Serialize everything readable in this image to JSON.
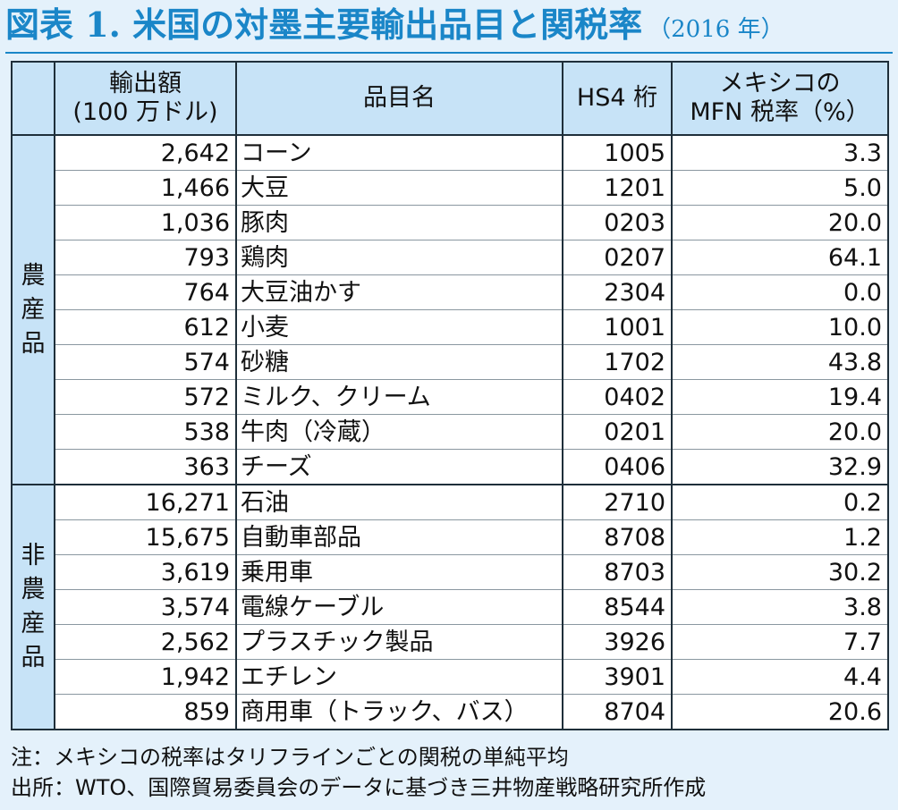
{
  "title": "図表 1. 米国の対墨主要輸出品目と関税率",
  "title_year": "（2016 年）",
  "headers": {
    "export_line1": "輸出額",
    "export_line2": "(100 万ドル)",
    "item": "品目名",
    "hs4": "HS4 桁",
    "mfn_line1": "メキシコの",
    "mfn_line2": "MFN 税率（%）"
  },
  "groups": {
    "agri": "農産品",
    "nonagri": "非農産品"
  },
  "chart_data": {
    "type": "table",
    "columns": [
      "輸出額(100 万ドル)",
      "品目名",
      "HS4 桁",
      "メキシコのMFN 税率（%）"
    ],
    "agri_rows": [
      {
        "export": "2,642",
        "item": "コーン",
        "hs4": "1005",
        "mfn": "3.3"
      },
      {
        "export": "1,466",
        "item": "大豆",
        "hs4": "1201",
        "mfn": "5.0"
      },
      {
        "export": "1,036",
        "item": "豚肉",
        "hs4": "0203",
        "mfn": "20.0"
      },
      {
        "export": "793",
        "item": "鶏肉",
        "hs4": "0207",
        "mfn": "64.1"
      },
      {
        "export": "764",
        "item": "大豆油かす",
        "hs4": "2304",
        "mfn": "0.0"
      },
      {
        "export": "612",
        "item": "小麦",
        "hs4": "1001",
        "mfn": "10.0"
      },
      {
        "export": "574",
        "item": "砂糖",
        "hs4": "1702",
        "mfn": "43.8"
      },
      {
        "export": "572",
        "item": "ミルク、クリーム",
        "hs4": "0402",
        "mfn": "19.4"
      },
      {
        "export": "538",
        "item": "牛肉（冷蔵）",
        "hs4": "0201",
        "mfn": "20.0"
      },
      {
        "export": "363",
        "item": "チーズ",
        "hs4": "0406",
        "mfn": "32.9"
      }
    ],
    "nonagri_rows": [
      {
        "export": "16,271",
        "item": "石油",
        "hs4": "2710",
        "mfn": "0.2"
      },
      {
        "export": "15,675",
        "item": "自動車部品",
        "hs4": "8708",
        "mfn": "1.2"
      },
      {
        "export": "3,619",
        "item": "乗用車",
        "hs4": "8703",
        "mfn": "30.2"
      },
      {
        "export": "3,574",
        "item": "電線ケーブル",
        "hs4": "8544",
        "mfn": "3.8"
      },
      {
        "export": "2,562",
        "item": "プラスチック製品",
        "hs4": "3926",
        "mfn": "7.7"
      },
      {
        "export": "1,942",
        "item": "エチレン",
        "hs4": "3901",
        "mfn": "4.4"
      },
      {
        "export": "859",
        "item": "商用車（トラック、バス）",
        "hs4": "8704",
        "mfn": "20.6"
      }
    ]
  },
  "notes": {
    "note": "注：メキシコの税率はタリフラインごとの関税の単純平均",
    "source": "出所：WTO、国際貿易委員会のデータに基づき三井物産戦略研究所作成"
  },
  "colors": {
    "title": "#1a86c8",
    "header_bg": "#c7e3f7",
    "page_bg": "#e4f1fb",
    "cell_bg": "#ffffff"
  }
}
